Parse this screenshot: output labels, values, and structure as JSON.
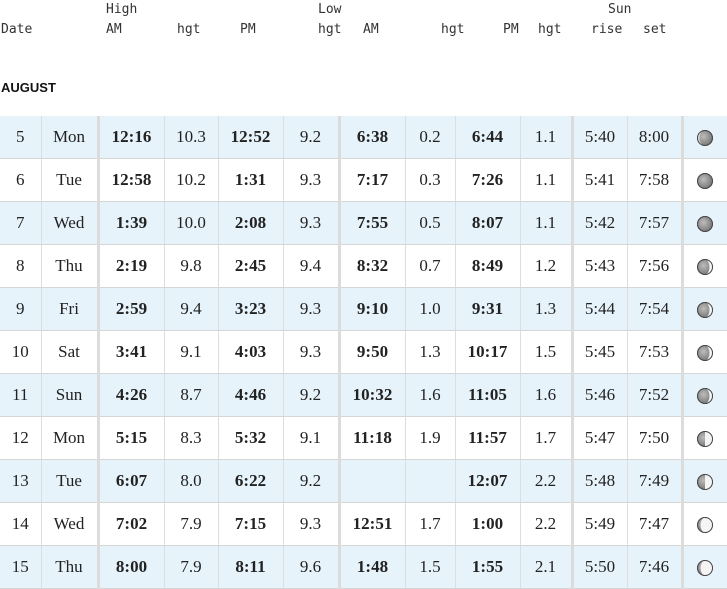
{
  "headers": {
    "date": "Date",
    "high": "High",
    "high_am": "AM",
    "high_am_hgt": "hgt",
    "high_pm": "PM",
    "high_pm_hgt": "hgt",
    "low": "Low",
    "low_am": "AM",
    "low_am_hgt": "hgt",
    "low_pm": "PM",
    "low_pm_hgt": "hgt",
    "sun": "Sun",
    "sunrise": "rise",
    "sunset": "set"
  },
  "month": "AUGUST",
  "rows": [
    {
      "day": "5",
      "dow": "Mon",
      "high_am": "12:16",
      "high_am_hgt": "10.3",
      "high_pm": "12:52",
      "high_pm_hgt": "9.2",
      "low_am": "6:38",
      "low_am_hgt": "0.2",
      "low_pm": "6:44",
      "low_pm_hgt": "1.1",
      "rise": "5:40",
      "set": "8:00",
      "moon": "waning-crescent"
    },
    {
      "day": "6",
      "dow": "Tue",
      "high_am": "12:58",
      "high_am_hgt": "10.2",
      "high_pm": "1:31",
      "high_pm_hgt": "9.3",
      "low_am": "7:17",
      "low_am_hgt": "0.3",
      "low_pm": "7:26",
      "low_pm_hgt": "1.1",
      "rise": "5:41",
      "set": "7:58",
      "moon": "new-moon"
    },
    {
      "day": "7",
      "dow": "Wed",
      "high_am": "1:39",
      "high_am_hgt": "10.0",
      "high_pm": "2:08",
      "high_pm_hgt": "9.3",
      "low_am": "7:55",
      "low_am_hgt": "0.5",
      "low_pm": "8:07",
      "low_pm_hgt": "1.1",
      "rise": "5:42",
      "set": "7:57",
      "moon": "new-moon"
    },
    {
      "day": "8",
      "dow": "Thu",
      "high_am": "2:19",
      "high_am_hgt": "9.8",
      "high_pm": "2:45",
      "high_pm_hgt": "9.4",
      "low_am": "8:32",
      "low_am_hgt": "0.7",
      "low_pm": "8:49",
      "low_pm_hgt": "1.2",
      "rise": "5:43",
      "set": "7:56",
      "moon": "waxing-crescent"
    },
    {
      "day": "9",
      "dow": "Fri",
      "high_am": "2:59",
      "high_am_hgt": "9.4",
      "high_pm": "3:23",
      "high_pm_hgt": "9.3",
      "low_am": "9:10",
      "low_am_hgt": "1.0",
      "low_pm": "9:31",
      "low_pm_hgt": "1.3",
      "rise": "5:44",
      "set": "7:54",
      "moon": "waxing-crescent"
    },
    {
      "day": "10",
      "dow": "Sat",
      "high_am": "3:41",
      "high_am_hgt": "9.1",
      "high_pm": "4:03",
      "high_pm_hgt": "9.3",
      "low_am": "9:50",
      "low_am_hgt": "1.3",
      "low_pm": "10:17",
      "low_pm_hgt": "1.5",
      "rise": "5:45",
      "set": "7:53",
      "moon": "waxing-crescent"
    },
    {
      "day": "11",
      "dow": "Sun",
      "high_am": "4:26",
      "high_am_hgt": "8.7",
      "high_pm": "4:46",
      "high_pm_hgt": "9.2",
      "low_am": "10:32",
      "low_am_hgt": "1.6",
      "low_pm": "11:05",
      "low_pm_hgt": "1.6",
      "rise": "5:46",
      "set": "7:52",
      "moon": "waxing-crescent"
    },
    {
      "day": "12",
      "dow": "Mon",
      "high_am": "5:15",
      "high_am_hgt": "8.3",
      "high_pm": "5:32",
      "high_pm_hgt": "9.1",
      "low_am": "11:18",
      "low_am_hgt": "1.9",
      "low_pm": "11:57",
      "low_pm_hgt": "1.7",
      "rise": "5:47",
      "set": "7:50",
      "moon": "first-quarter"
    },
    {
      "day": "13",
      "dow": "Tue",
      "high_am": "6:07",
      "high_am_hgt": "8.0",
      "high_pm": "6:22",
      "high_pm_hgt": "9.2",
      "low_am": "",
      "low_am_hgt": "",
      "low_pm": "12:07",
      "low_pm_hgt": "2.2",
      "rise": "5:48",
      "set": "7:49",
      "moon": "first-quarter"
    },
    {
      "day": "14",
      "dow": "Wed",
      "high_am": "7:02",
      "high_am_hgt": "7.9",
      "high_pm": "7:15",
      "high_pm_hgt": "9.3",
      "low_am": "12:51",
      "low_am_hgt": "1.7",
      "low_pm": "1:00",
      "low_pm_hgt": "2.2",
      "rise": "5:49",
      "set": "7:47",
      "moon": "waxing-gibbous"
    },
    {
      "day": "15",
      "dow": "Thu",
      "high_am": "8:00",
      "high_am_hgt": "7.9",
      "high_pm": "8:11",
      "high_pm_hgt": "9.6",
      "low_am": "1:48",
      "low_am_hgt": "1.5",
      "low_pm": "1:55",
      "low_pm_hgt": "2.1",
      "rise": "5:50",
      "set": "7:46",
      "moon": "waxing-gibbous"
    }
  ]
}
